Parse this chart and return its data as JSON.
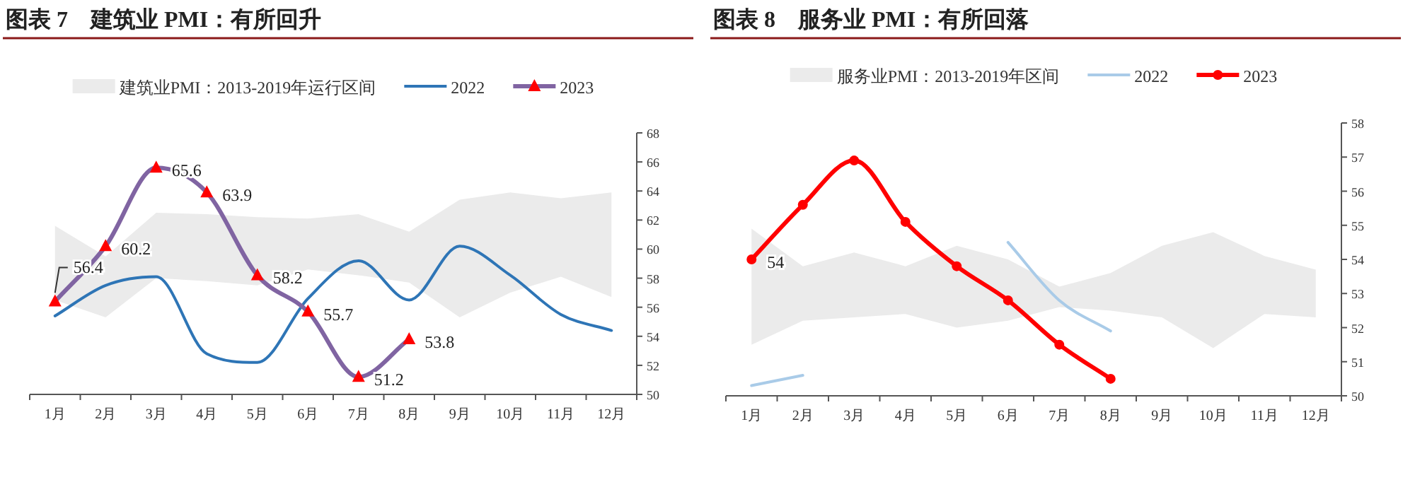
{
  "chart_data": [
    {
      "type": "line",
      "title": "图表 7　建筑业 PMI：有所回升",
      "categories": [
        "1月",
        "2月",
        "3月",
        "4月",
        "5月",
        "6月",
        "7月",
        "8月",
        "9月",
        "10月",
        "11月",
        "12月"
      ],
      "ylim": [
        50,
        68
      ],
      "yticks": [
        50,
        52,
        54,
        56,
        58,
        60,
        62,
        64,
        66,
        68
      ],
      "grid": false,
      "legend": "top",
      "series": [
        {
          "name": "建筑业PMI：2013-2019年运行区间",
          "type": "area",
          "color": "#ebebeb",
          "values": [
            null,
            null,
            null,
            null,
            null,
            null,
            null,
            null,
            null,
            null,
            null,
            null
          ],
          "upper": [
            61.6,
            59.5,
            62.5,
            62.4,
            62.2,
            62.1,
            62.4,
            61.2,
            63.4,
            63.9,
            63.5,
            63.9
          ],
          "lower": [
            56.5,
            55.3,
            58.0,
            57.8,
            57.5,
            58.6,
            58.2,
            57.7,
            55.3,
            57.0,
            58.1,
            56.7
          ]
        },
        {
          "name": "2022",
          "type": "line",
          "color": "#2e75b6",
          "marker": "none",
          "values": [
            55.4,
            57.5,
            58.1,
            52.8,
            52.2,
            56.6,
            59.2,
            56.5,
            60.2,
            58.2,
            55.5,
            54.4
          ]
        },
        {
          "name": "2023",
          "type": "line",
          "color": "#8064a2",
          "marker": "triangle",
          "colors": [
            "#ff0000",
            "#ff0000",
            "#ff0000",
            "#ff0000",
            "#ff0000",
            "#ff0000",
            "#ff0000",
            "#ff0000",
            null,
            null,
            null,
            null
          ],
          "values": [
            56.4,
            60.2,
            65.6,
            63.9,
            58.2,
            55.7,
            51.2,
            53.8,
            null,
            null,
            null,
            null
          ],
          "value_labels": [
            "56.4",
            "60.2",
            "65.6",
            "63.9",
            "58.2",
            "55.7",
            "51.2",
            "53.8",
            null,
            null,
            null,
            null
          ]
        }
      ]
    },
    {
      "type": "line",
      "title": "图表 8　服务业 PMI：有所回落",
      "categories": [
        "1月",
        "2月",
        "3月",
        "4月",
        "5月",
        "6月",
        "7月",
        "8月",
        "9月",
        "10月",
        "11月",
        "12月"
      ],
      "ylim": [
        50,
        58
      ],
      "yticks": [
        50,
        51,
        52,
        53,
        54,
        55,
        56,
        57,
        58
      ],
      "grid": false,
      "legend": "top",
      "series": [
        {
          "name": "服务业PMI：2013-2019年区间",
          "type": "area",
          "color": "#ebebeb",
          "values": [
            null,
            null,
            null,
            null,
            null,
            null,
            null,
            null,
            null,
            null,
            null,
            null
          ],
          "upper": [
            54.9,
            53.8,
            54.2,
            53.8,
            54.4,
            54.0,
            53.2,
            53.6,
            54.4,
            54.8,
            54.1,
            53.7
          ],
          "lower": [
            51.5,
            52.2,
            52.3,
            52.4,
            52.0,
            52.2,
            52.6,
            52.5,
            52.3,
            51.4,
            52.4,
            52.3
          ]
        },
        {
          "name": "2022",
          "type": "line",
          "color": "#a9cbe8",
          "marker": "none",
          "values": [
            50.3,
            50.6,
            null,
            null,
            null,
            54.5,
            52.8,
            51.9,
            null,
            null,
            null,
            null
          ]
        },
        {
          "name": "2023",
          "type": "line",
          "color": "#ff0000",
          "marker": "circle",
          "colors": [
            "#ff0000",
            "#ff0000",
            "#ff0000",
            "#ff0000",
            "#ff0000",
            "#ff0000",
            "#ff0000",
            "#ff0000",
            null,
            null,
            null,
            null
          ],
          "values": [
            54.0,
            55.6,
            56.9,
            55.1,
            53.8,
            52.8,
            51.5,
            50.5,
            null,
            null,
            null,
            null
          ],
          "value_labels": [
            "54",
            null,
            null,
            null,
            null,
            null,
            null,
            null,
            null,
            null,
            null,
            null
          ]
        }
      ]
    }
  ]
}
